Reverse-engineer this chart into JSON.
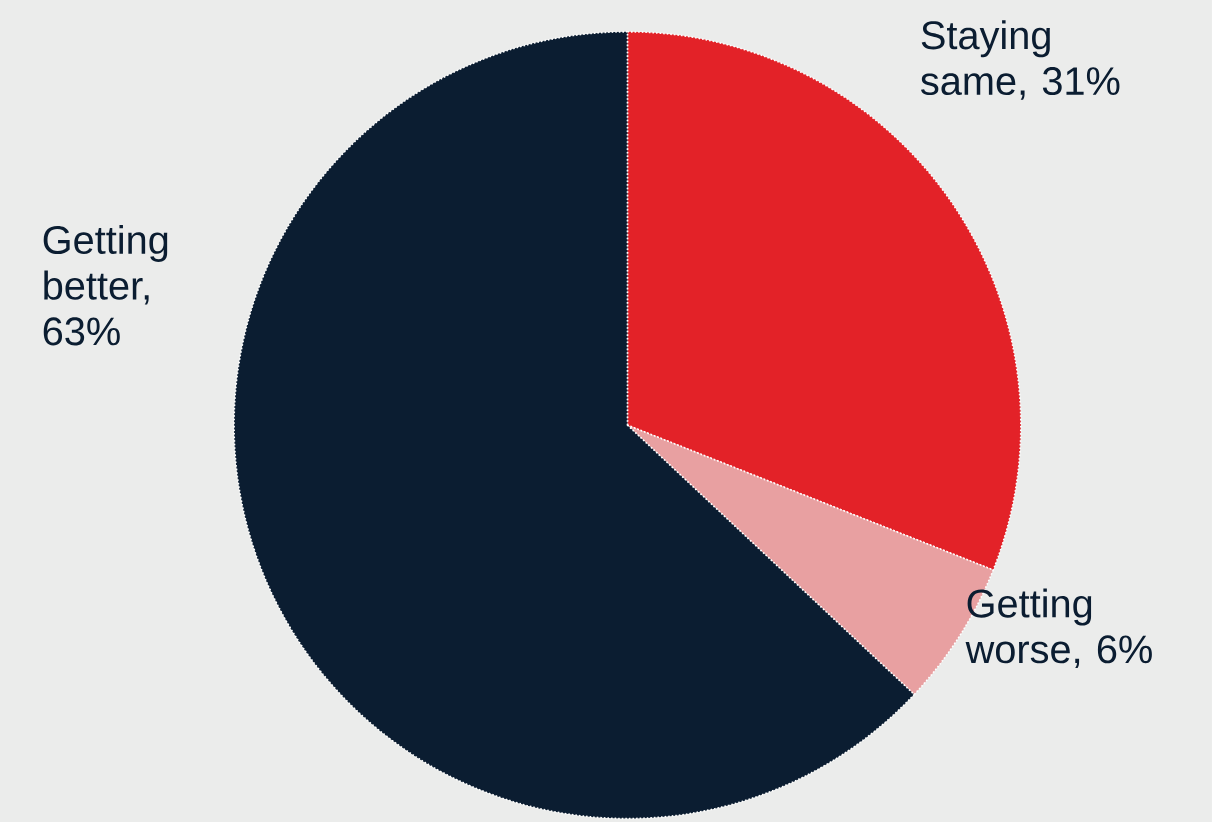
{
  "chart_data": {
    "type": "pie",
    "categories": [
      "Staying same, 31%",
      "Getting worse, 6%",
      "Getting better, 63%"
    ],
    "values": [
      31,
      6,
      63
    ],
    "colors": [
      "#e32228",
      "#e8a0a1",
      "#0b1d31"
    ]
  }
}
